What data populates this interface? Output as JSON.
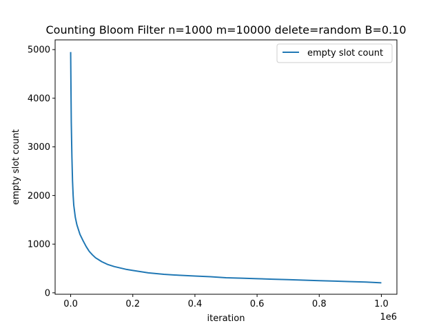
{
  "chart_data": {
    "type": "line",
    "title": "Counting Bloom Filter n=1000 m=10000 delete=random B=0.10",
    "xlabel": "iteration",
    "ylabel": "empty slot count",
    "x_offset_label": "1e6",
    "xlim": [
      -0.05,
      1.05
    ],
    "ylim": [
      -30,
      5200
    ],
    "x_ticks": [
      0.0,
      0.2,
      0.4,
      0.6,
      0.8,
      1.0
    ],
    "x_tick_labels": [
      "0.0",
      "0.2",
      "0.4",
      "0.6",
      "0.8",
      "1.0"
    ],
    "y_ticks": [
      0,
      1000,
      2000,
      3000,
      4000,
      5000
    ],
    "y_tick_labels": [
      "0",
      "1000",
      "2000",
      "3000",
      "4000",
      "5000"
    ],
    "grid": false,
    "legend_position": "upper right",
    "series": [
      {
        "name": "empty slot count",
        "color": "#1f77b4",
        "x": [
          0.0,
          0.001,
          0.002,
          0.004,
          0.006,
          0.008,
          0.01,
          0.015,
          0.02,
          0.025,
          0.03,
          0.04,
          0.05,
          0.06,
          0.07,
          0.08,
          0.09,
          0.1,
          0.12,
          0.14,
          0.16,
          0.18,
          0.2,
          0.25,
          0.3,
          0.35,
          0.4,
          0.45,
          0.5,
          0.55,
          0.6,
          0.65,
          0.7,
          0.75,
          0.8,
          0.85,
          0.9,
          0.95,
          1.0
        ],
        "y": [
          4950,
          4200,
          3500,
          2800,
          2300,
          2000,
          1800,
          1550,
          1400,
          1300,
          1200,
          1070,
          950,
          850,
          780,
          720,
          680,
          640,
          580,
          540,
          510,
          480,
          460,
          410,
          380,
          360,
          345,
          330,
          310,
          300,
          290,
          280,
          270,
          260,
          250,
          240,
          230,
          220,
          205
        ]
      }
    ]
  }
}
